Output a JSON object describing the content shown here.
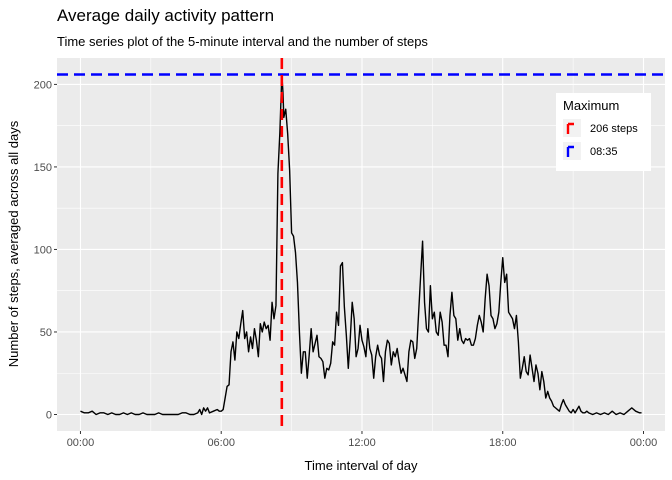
{
  "chart_data": {
    "type": "line",
    "title": "Average daily activity pattern",
    "subtitle": "Time series plot of the 5-minute interval and the number of steps",
    "xlabel": "Time interval of day",
    "ylabel": "Number of steps, averaged across all days",
    "x_unit": "minutes of day",
    "xlim": [
      -60,
      1495
    ],
    "ylim": [
      -10,
      216
    ],
    "x_ticks": [
      0,
      360,
      720,
      1080,
      1440
    ],
    "x_tick_labels": [
      "00:00",
      "06:00",
      "12:00",
      "18:00",
      "00:00"
    ],
    "y_ticks": [
      0,
      50,
      100,
      150,
      200
    ],
    "y_tick_labels": [
      "0",
      "50",
      "100",
      "150",
      "200"
    ],
    "grid": true,
    "legend_position": "top-right",
    "legend": {
      "title": "Maximum",
      "entries": [
        {
          "label": "206 steps",
          "color": "#ff0000"
        },
        {
          "label": "08:35",
          "color": "#0000ff"
        }
      ]
    },
    "reference_lines": [
      {
        "orientation": "horizontal",
        "value": 206,
        "color": "#0000ff",
        "style": "dashed"
      },
      {
        "orientation": "vertical",
        "value": 515,
        "color": "#ff0000",
        "style": "dashed"
      }
    ],
    "series": [
      {
        "color": "#000000",
        "points": [
          [
            0,
            2
          ],
          [
            10,
            1
          ],
          [
            20,
            1
          ],
          [
            30,
            2
          ],
          [
            40,
            0
          ],
          [
            50,
            1
          ],
          [
            60,
            1
          ],
          [
            70,
            0
          ],
          [
            80,
            1
          ],
          [
            90,
            0
          ],
          [
            100,
            0
          ],
          [
            110,
            1
          ],
          [
            120,
            0
          ],
          [
            130,
            1
          ],
          [
            140,
            0
          ],
          [
            150,
            0
          ],
          [
            160,
            1
          ],
          [
            170,
            0
          ],
          [
            180,
            0
          ],
          [
            190,
            0
          ],
          [
            200,
            1
          ],
          [
            210,
            0
          ],
          [
            220,
            0
          ],
          [
            230,
            0
          ],
          [
            240,
            0
          ],
          [
            250,
            0
          ],
          [
            260,
            1
          ],
          [
            270,
            1
          ],
          [
            280,
            0
          ],
          [
            290,
            0
          ],
          [
            300,
            1
          ],
          [
            305,
            3
          ],
          [
            310,
            0
          ],
          [
            315,
            4
          ],
          [
            320,
            2
          ],
          [
            325,
            4
          ],
          [
            330,
            1
          ],
          [
            340,
            2
          ],
          [
            350,
            3
          ],
          [
            355,
            2
          ],
          [
            360,
            2
          ],
          [
            365,
            3
          ],
          [
            370,
            10
          ],
          [
            375,
            17
          ],
          [
            380,
            18
          ],
          [
            385,
            38
          ],
          [
            390,
            44
          ],
          [
            395,
            33
          ],
          [
            400,
            50
          ],
          [
            405,
            46
          ],
          [
            410,
            55
          ],
          [
            415,
            63
          ],
          [
            420,
            46
          ],
          [
            425,
            50
          ],
          [
            430,
            38
          ],
          [
            435,
            47
          ],
          [
            440,
            40
          ],
          [
            445,
            52
          ],
          [
            450,
            45
          ],
          [
            455,
            35
          ],
          [
            460,
            55
          ],
          [
            465,
            50
          ],
          [
            470,
            56
          ],
          [
            475,
            52
          ],
          [
            480,
            54
          ],
          [
            485,
            45
          ],
          [
            490,
            68
          ],
          [
            495,
            58
          ],
          [
            500,
            66
          ],
          [
            505,
            146
          ],
          [
            510,
            171
          ],
          [
            515,
            206
          ],
          [
            518,
            195
          ],
          [
            520,
            180
          ],
          [
            525,
            185
          ],
          [
            530,
            170
          ],
          [
            535,
            148
          ],
          [
            540,
            110
          ],
          [
            545,
            108
          ],
          [
            550,
            98
          ],
          [
            555,
            80
          ],
          [
            560,
            50
          ],
          [
            565,
            25
          ],
          [
            570,
            38
          ],
          [
            575,
            38
          ],
          [
            580,
            22
          ],
          [
            585,
            36
          ],
          [
            590,
            52
          ],
          [
            595,
            38
          ],
          [
            600,
            43
          ],
          [
            605,
            48
          ],
          [
            610,
            35
          ],
          [
            615,
            34
          ],
          [
            620,
            32
          ],
          [
            625,
            22
          ],
          [
            630,
            28
          ],
          [
            635,
            27
          ],
          [
            640,
            31
          ],
          [
            645,
            44
          ],
          [
            650,
            42
          ],
          [
            655,
            62
          ],
          [
            660,
            54
          ],
          [
            665,
            90
          ],
          [
            670,
            92
          ],
          [
            675,
            65
          ],
          [
            680,
            48
          ],
          [
            685,
            28
          ],
          [
            690,
            46
          ],
          [
            695,
            68
          ],
          [
            700,
            58
          ],
          [
            705,
            35
          ],
          [
            710,
            40
          ],
          [
            715,
            54
          ],
          [
            720,
            45
          ],
          [
            725,
            41
          ],
          [
            730,
            35
          ],
          [
            735,
            52
          ],
          [
            740,
            40
          ],
          [
            745,
            36
          ],
          [
            750,
            22
          ],
          [
            755,
            35
          ],
          [
            760,
            42
          ],
          [
            765,
            36
          ],
          [
            770,
            34
          ],
          [
            775,
            20
          ],
          [
            780,
            38
          ],
          [
            785,
            45
          ],
          [
            790,
            43
          ],
          [
            795,
            30
          ],
          [
            800,
            38
          ],
          [
            805,
            35
          ],
          [
            810,
            40
          ],
          [
            815,
            32
          ],
          [
            820,
            25
          ],
          [
            825,
            28
          ],
          [
            830,
            24
          ],
          [
            835,
            20
          ],
          [
            840,
            38
          ],
          [
            845,
            45
          ],
          [
            850,
            44
          ],
          [
            855,
            34
          ],
          [
            860,
            40
          ],
          [
            865,
            62
          ],
          [
            870,
            84
          ],
          [
            875,
            105
          ],
          [
            880,
            68
          ],
          [
            885,
            52
          ],
          [
            890,
            50
          ],
          [
            895,
            78
          ],
          [
            900,
            58
          ],
          [
            905,
            62
          ],
          [
            910,
            50
          ],
          [
            915,
            48
          ],
          [
            920,
            62
          ],
          [
            925,
            56
          ],
          [
            930,
            42
          ],
          [
            935,
            42
          ],
          [
            940,
            35
          ],
          [
            945,
            60
          ],
          [
            950,
            74
          ],
          [
            955,
            60
          ],
          [
            960,
            58
          ],
          [
            965,
            45
          ],
          [
            970,
            52
          ],
          [
            975,
            45
          ],
          [
            980,
            43
          ],
          [
            985,
            46
          ],
          [
            990,
            45
          ],
          [
            995,
            46
          ],
          [
            1000,
            42
          ],
          [
            1005,
            42
          ],
          [
            1010,
            46
          ],
          [
            1015,
            54
          ],
          [
            1020,
            60
          ],
          [
            1025,
            56
          ],
          [
            1030,
            50
          ],
          [
            1035,
            70
          ],
          [
            1040,
            85
          ],
          [
            1045,
            78
          ],
          [
            1050,
            60
          ],
          [
            1055,
            58
          ],
          [
            1060,
            52
          ],
          [
            1065,
            55
          ],
          [
            1070,
            62
          ],
          [
            1075,
            80
          ],
          [
            1080,
            95
          ],
          [
            1085,
            80
          ],
          [
            1090,
            85
          ],
          [
            1095,
            62
          ],
          [
            1100,
            60
          ],
          [
            1105,
            58
          ],
          [
            1110,
            52
          ],
          [
            1115,
            60
          ],
          [
            1120,
            44
          ],
          [
            1125,
            22
          ],
          [
            1130,
            28
          ],
          [
            1135,
            35
          ],
          [
            1140,
            26
          ],
          [
            1145,
            24
          ],
          [
            1150,
            36
          ],
          [
            1155,
            28
          ],
          [
            1160,
            20
          ],
          [
            1165,
            30
          ],
          [
            1170,
            25
          ],
          [
            1175,
            15
          ],
          [
            1180,
            26
          ],
          [
            1185,
            20
          ],
          [
            1190,
            10
          ],
          [
            1195,
            14
          ],
          [
            1200,
            10
          ],
          [
            1205,
            8
          ],
          [
            1210,
            5
          ],
          [
            1215,
            4
          ],
          [
            1220,
            3
          ],
          [
            1225,
            2
          ],
          [
            1230,
            6
          ],
          [
            1235,
            9
          ],
          [
            1240,
            6
          ],
          [
            1245,
            4
          ],
          [
            1250,
            2
          ],
          [
            1255,
            1
          ],
          [
            1260,
            3
          ],
          [
            1265,
            1
          ],
          [
            1270,
            3
          ],
          [
            1275,
            5
          ],
          [
            1280,
            2
          ],
          [
            1285,
            1
          ],
          [
            1290,
            1
          ],
          [
            1295,
            2
          ],
          [
            1300,
            1
          ],
          [
            1310,
            0
          ],
          [
            1320,
            1
          ],
          [
            1330,
            0
          ],
          [
            1340,
            1
          ],
          [
            1350,
            0
          ],
          [
            1360,
            2
          ],
          [
            1370,
            0
          ],
          [
            1380,
            1
          ],
          [
            1390,
            0
          ],
          [
            1400,
            2
          ],
          [
            1410,
            4
          ],
          [
            1420,
            2
          ],
          [
            1430,
            1
          ],
          [
            1435,
            1
          ]
        ]
      }
    ]
  }
}
